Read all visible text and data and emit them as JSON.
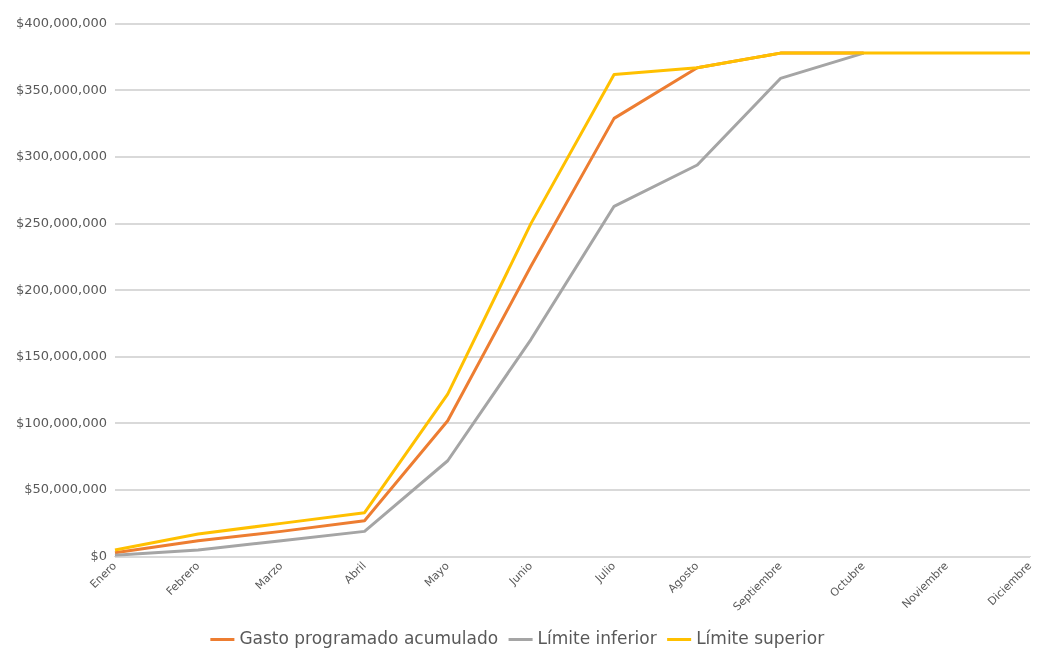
{
  "chart_data": {
    "type": "line",
    "categories": [
      "Enero",
      "Febrero",
      "Marzo",
      "Abril",
      "Mayo",
      "Junio",
      "Julio",
      "Agosto",
      "Septiembre",
      "Octubre",
      "Noviembre",
      "Diciembre"
    ],
    "series": [
      {
        "name": "Gasto programado acumulado",
        "color": "#ed7d31",
        "values": [
          3000000,
          12000000,
          19000000,
          27000000,
          102000000,
          218000000,
          329000000,
          367000000,
          378000000,
          378000000,
          null,
          null
        ]
      },
      {
        "name": "Límite inferior",
        "color": "#a5a5a5",
        "values": [
          1000000,
          5000000,
          12000000,
          19000000,
          72000000,
          163000000,
          263000000,
          294000000,
          359000000,
          378000000,
          null,
          null
        ]
      },
      {
        "name": "Límite superior",
        "color": "#ffc000",
        "values": [
          5000000,
          17000000,
          25000000,
          33000000,
          122000000,
          250000000,
          362000000,
          367000000,
          378000000,
          378000000,
          378000000,
          378000000
        ]
      }
    ],
    "ylim": [
      0,
      400000000
    ],
    "yticks": [
      {
        "value": 0,
        "label": "$0"
      },
      {
        "value": 50000000,
        "label": "$50,000,000"
      },
      {
        "value": 100000000,
        "label": "$100,000,000"
      },
      {
        "value": 150000000,
        "label": "$150,000,000"
      },
      {
        "value": 200000000,
        "label": "$200,000,000"
      },
      {
        "value": 250000000,
        "label": "$250,000,000"
      },
      {
        "value": 300000000,
        "label": "$300,000,000"
      },
      {
        "value": 350000000,
        "label": "$350,000,000"
      },
      {
        "value": 400000000,
        "label": "$400,000,000"
      }
    ],
    "grid": "y",
    "legend": "bottom",
    "marker": "none",
    "line_style": "solid"
  }
}
